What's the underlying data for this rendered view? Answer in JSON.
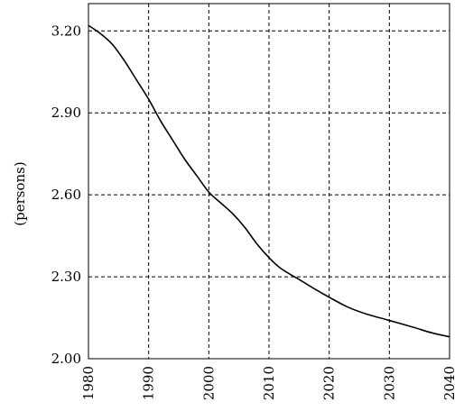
{
  "chart_data": {
    "type": "line",
    "title": "",
    "xlabel": "",
    "ylabel": "(persons)",
    "xlim": [
      1980,
      2040
    ],
    "ylim": [
      2.0,
      3.3
    ],
    "x_ticks": [
      1980,
      1990,
      2000,
      2010,
      2020,
      2030,
      2040
    ],
    "y_ticks": [
      2.0,
      2.3,
      2.6,
      2.9,
      3.2
    ],
    "x_tick_labels": [
      "1980",
      "1990",
      "2000",
      "2010",
      "2020",
      "2030",
      "2040"
    ],
    "y_tick_labels": [
      "2.00",
      "2.30",
      "2.60",
      "2.90",
      "3.20"
    ],
    "grid": true,
    "grid_style": "dashed",
    "series": [
      {
        "color": "#000000",
        "x": [
          1980,
          1982,
          1984,
          1986,
          1988,
          1990,
          1992,
          1994,
          1996,
          1998,
          2000,
          2002,
          2004,
          2006,
          2008,
          2010,
          2012,
          2015,
          2018,
          2020,
          2023,
          2026,
          2030,
          2034,
          2037,
          2040
        ],
        "y": [
          3.22,
          3.19,
          3.15,
          3.09,
          3.02,
          2.95,
          2.87,
          2.8,
          2.73,
          2.67,
          2.61,
          2.57,
          2.53,
          2.48,
          2.42,
          2.37,
          2.33,
          2.29,
          2.25,
          2.225,
          2.19,
          2.165,
          2.14,
          2.115,
          2.095,
          2.08
        ]
      }
    ]
  }
}
